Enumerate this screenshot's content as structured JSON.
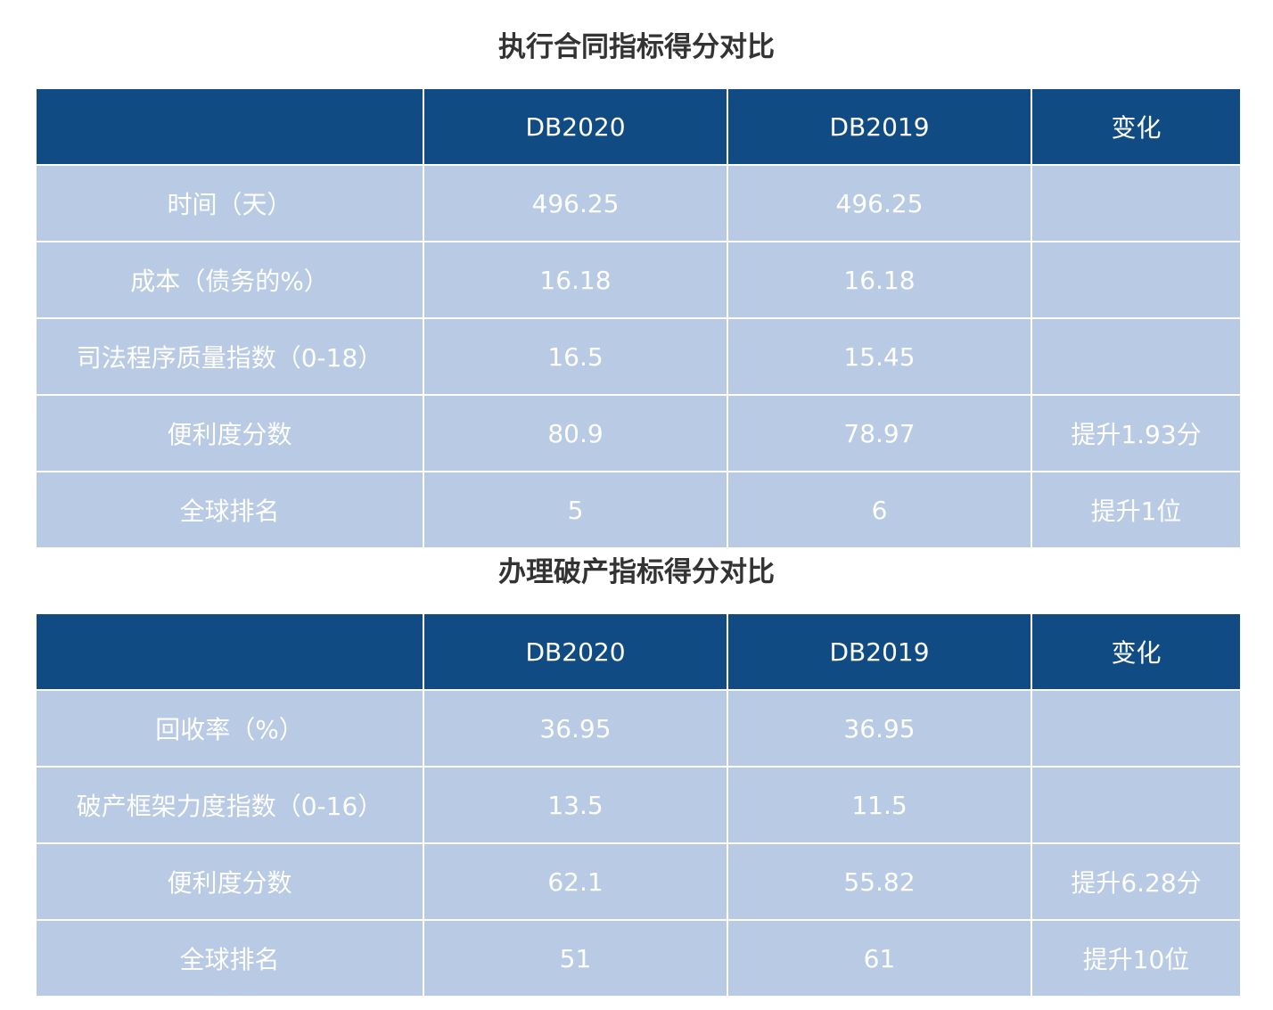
{
  "tables": [
    {
      "title": "执行合同指标得分对比",
      "headers": [
        "",
        "DB2020",
        "DB2019",
        "变化"
      ],
      "rows": [
        [
          "时间（天）",
          "496.25",
          "496.25",
          ""
        ],
        [
          "成本（债务的%）",
          "16.18",
          "16.18",
          ""
        ],
        [
          "司法程序质量指数（0-18）",
          "16.5",
          "15.45",
          ""
        ],
        [
          "便利度分数",
          "80.9",
          "78.97",
          "提升1.93分"
        ],
        [
          "全球排名",
          "5",
          "6",
          "提升1位"
        ]
      ]
    },
    {
      "title": "办理破产指标得分对比",
      "headers": [
        "",
        "DB2020",
        "DB2019",
        "变化"
      ],
      "rows": [
        [
          "回收率（%）",
          "36.95",
          "36.95",
          ""
        ],
        [
          "破产框架力度指数（0-16）",
          "13.5",
          "11.5",
          ""
        ],
        [
          "便利度分数",
          "62.1",
          "55.82",
          "提升6.28分"
        ],
        [
          "全球排名",
          "51",
          "61",
          "提升10位"
        ]
      ]
    }
  ],
  "colors": {
    "header_bg": "#104c83",
    "row_bg": "#b8cae4",
    "title_text": "#333333",
    "cell_text": "#ffffff"
  }
}
